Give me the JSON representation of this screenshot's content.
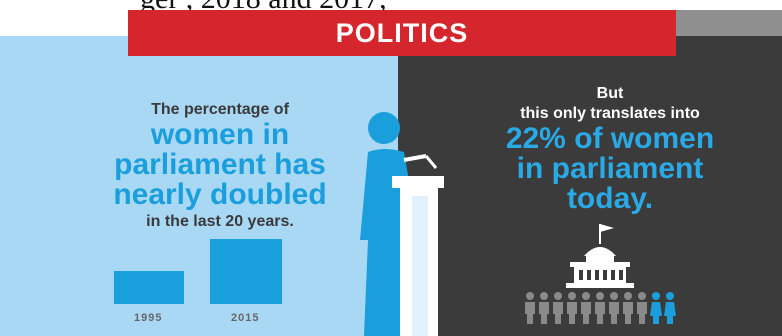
{
  "top_fragment": "ger             , 2018 and 2017,",
  "banner": {
    "title": "POLITICS"
  },
  "left": {
    "line1": "The percentage of",
    "line2": "women in",
    "line3": "parliament has",
    "line4": "nearly doubled",
    "line5": "in the last 20 years."
  },
  "right": {
    "line1": "But",
    "line2": "this only translates into",
    "line3": "22% of women",
    "line4": "in parliament",
    "line5": "today."
  },
  "chart_data": {
    "type": "bar",
    "categories": [
      "1995",
      "2015"
    ],
    "values": [
      11.3,
      22
    ],
    "ylim": [
      0,
      25
    ]
  },
  "parliament": {
    "people_total": 11,
    "women_count": 2
  },
  "colors": {
    "accent_blue": "#1a9fdc",
    "banner_red": "#d6262d",
    "left_bg": "#a9d8f5",
    "right_bg": "#3b3b3b",
    "people_gray": "#8a8a8a"
  }
}
